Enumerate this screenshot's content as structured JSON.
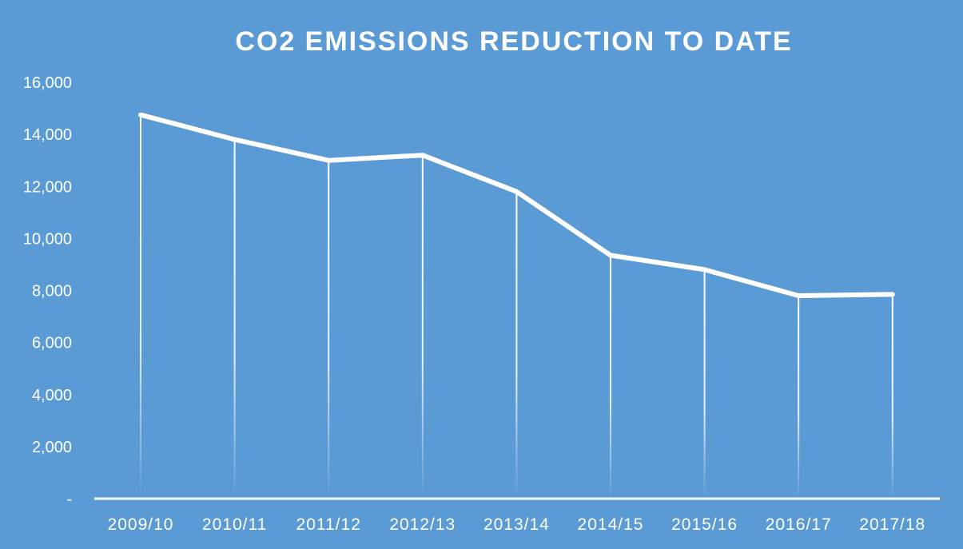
{
  "colors": {
    "background": "#5b9bd5",
    "line": "#ffffff",
    "text": "#ffffff"
  },
  "chart_data": {
    "type": "line",
    "title": "CO2 EMISSIONS REDUCTION TO DATE",
    "xlabel": "",
    "ylabel": "",
    "categories": [
      "2009/10",
      "2010/11",
      "2011/12",
      "2012/13",
      "2013/14",
      "2014/15",
      "2015/16",
      "2016/17",
      "2017/18"
    ],
    "series": [
      {
        "values": [
          14750,
          13800,
          13000,
          13200,
          11800,
          9350,
          8800,
          7800,
          7850
        ]
      }
    ],
    "ylim": [
      0,
      16000
    ],
    "yticks": [
      0,
      2000,
      4000,
      6000,
      8000,
      10000,
      12000,
      14000,
      16000
    ],
    "ytick_labels": [
      "-",
      "2,000",
      "4,000",
      "6,000",
      "8,000",
      "10,000",
      "12,000",
      "14,000",
      "16,000"
    ],
    "drop_lines": true,
    "grid": false,
    "legend": "none"
  }
}
